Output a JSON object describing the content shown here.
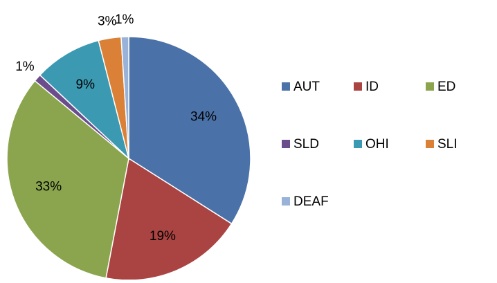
{
  "chart_data": {
    "type": "pie",
    "categories": [
      "AUT",
      "ID",
      "ED",
      "SLD",
      "OHI",
      "SLI",
      "DEAF"
    ],
    "values": [
      34,
      19,
      33,
      1,
      9,
      3,
      1
    ],
    "value_labels": [
      "34%",
      "19%",
      "33%",
      "1%",
      "9%",
      "3%",
      "1%"
    ],
    "colors": [
      "#4a72a8",
      "#a94442",
      "#8aa54e",
      "#6c4d8c",
      "#3b99b1",
      "#db8137",
      "#98b2d8"
    ],
    "legend": "right"
  }
}
